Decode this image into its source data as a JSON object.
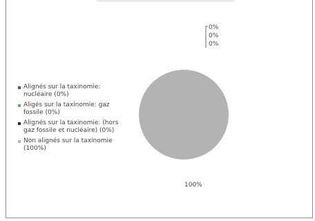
{
  "chart_data": {
    "type": "pie",
    "title": "",
    "slices": [
      {
        "name": "Alignés sur la taxinomie: nucléaire (0%)",
        "value": 0,
        "label": "0%",
        "color": "#3c6e3c"
      },
      {
        "name": "Aligés sur la taxinomie: gaz fossile (0%)",
        "value": 0,
        "label": "0%",
        "color": "#6aa86a"
      },
      {
        "name": "Alignés sur la taxinomie: (hors gaz fossile et nucléaire) (0%)",
        "value": 0,
        "label": "0%",
        "color": "#1a3d1a"
      },
      {
        "name": "Non alignés sur la taxinomie (100%)",
        "value": 100,
        "label": "100%",
        "color": "#b3b3b3"
      }
    ],
    "legend_position": "left"
  }
}
